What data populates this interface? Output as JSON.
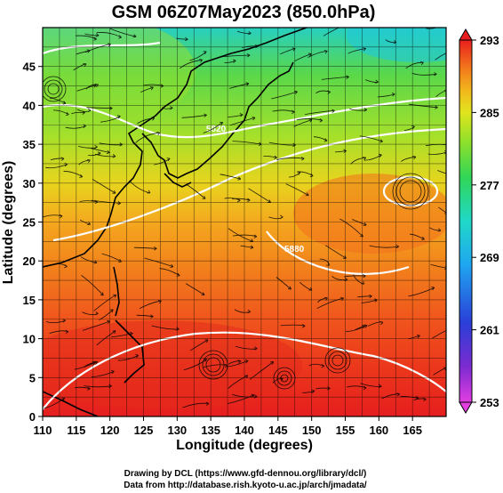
{
  "title": "GSM 06Z07May2023 (850.0hPa)",
  "x_axis": {
    "label": "Longitude (degrees)",
    "ticks": [
      "110",
      "115",
      "120",
      "125",
      "130",
      "135",
      "140",
      "145",
      "150",
      "155",
      "160",
      "165"
    ],
    "range": [
      110,
      170
    ]
  },
  "y_axis": {
    "label": "Latitude (degrees)",
    "ticks": [
      "0",
      "5",
      "10",
      "15",
      "20",
      "25",
      "30",
      "35",
      "40",
      "45"
    ],
    "range": [
      0,
      50
    ]
  },
  "colorbar": {
    "ticks": [
      "253",
      "261",
      "269",
      "277",
      "285",
      "293"
    ],
    "range": [
      253,
      293
    ],
    "colors": [
      "#e23ee0",
      "#5a2bc4",
      "#1f3fd8",
      "#1fa0f0",
      "#1fd8d0",
      "#2fd65a",
      "#7ee02a",
      "#d8e61e",
      "#f2c81c",
      "#f58a1c",
      "#ef4a1a",
      "#e81e1e"
    ]
  },
  "contour_labels": [
    "5820",
    "5880"
  ],
  "credits": {
    "line1": "Drawing by DCL (https://www.gfd-dennou.org/library/dcl/)",
    "line2": "Data from http://database.rish.kyoto-u.ac.jp/arch/jmadata/"
  }
}
